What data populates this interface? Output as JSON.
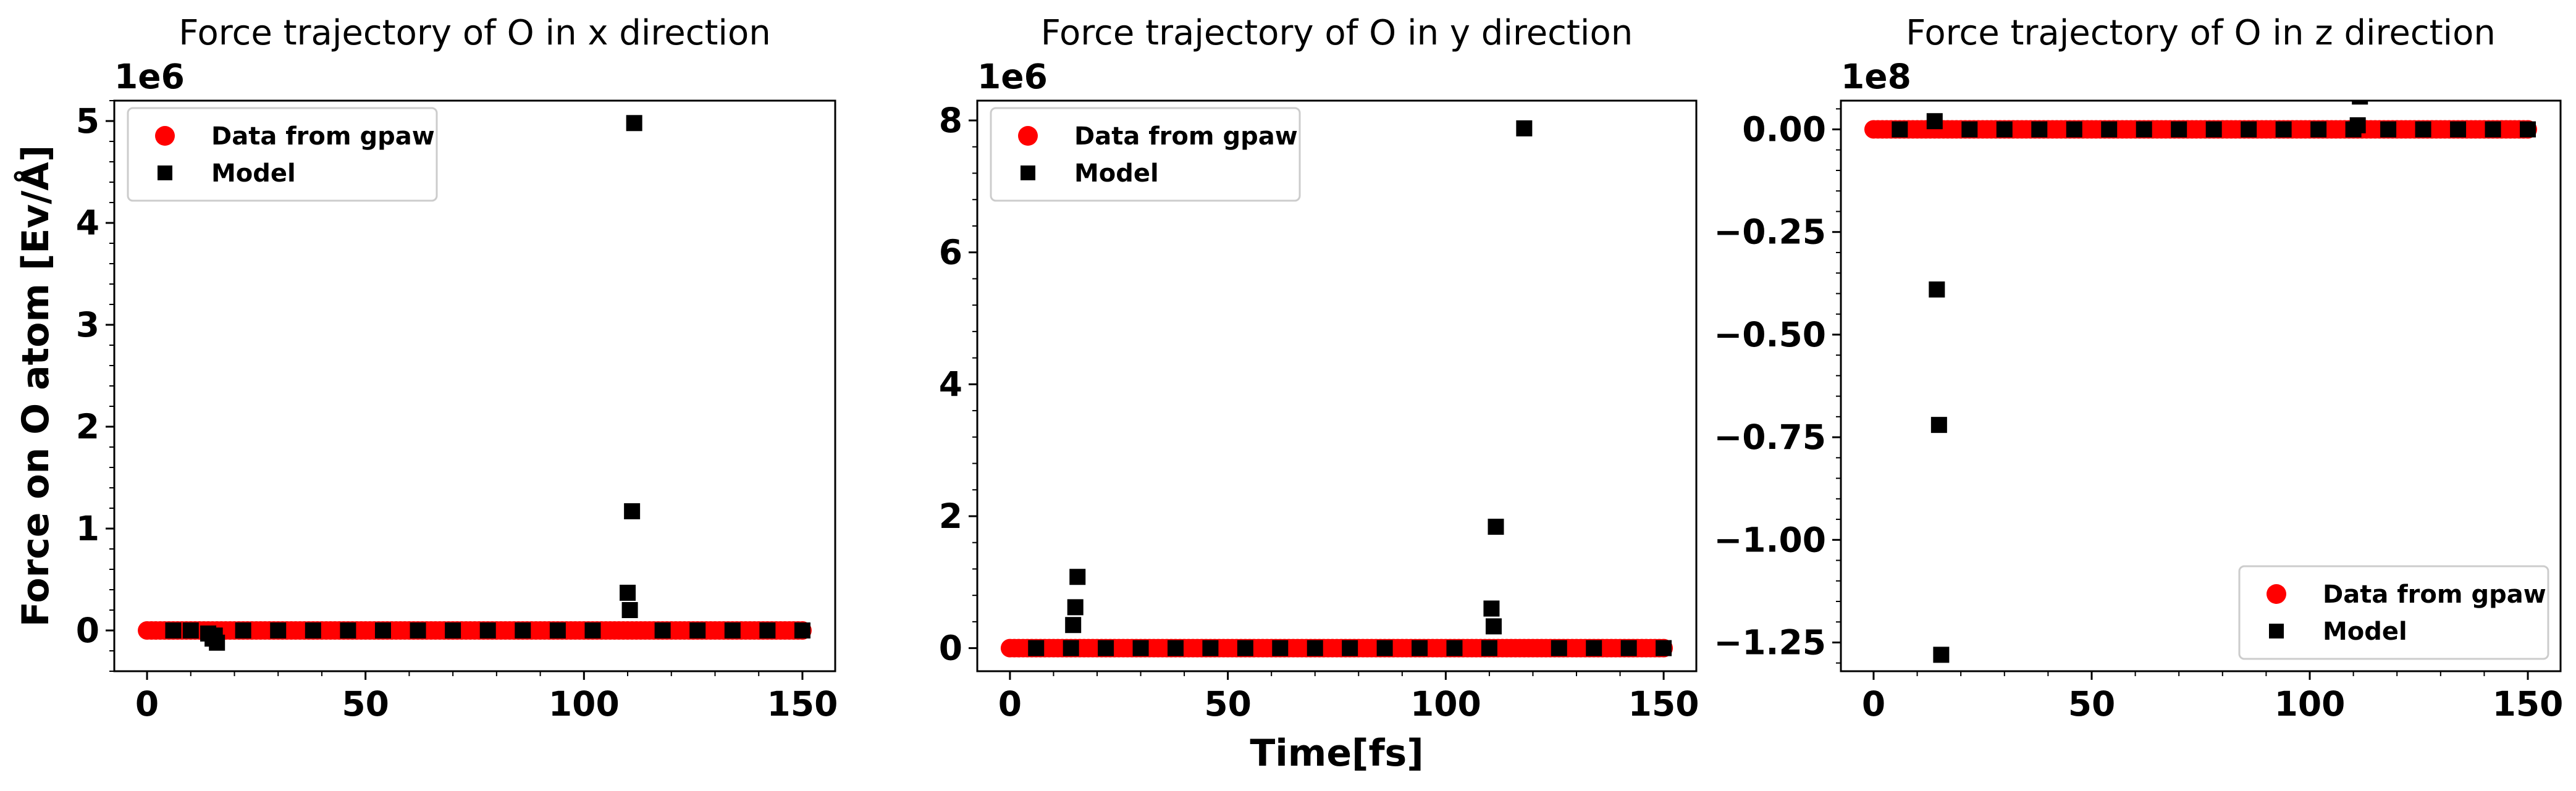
{
  "chart_data": [
    {
      "type": "scatter",
      "title": "Force trajectory of O in x direction",
      "xlabel": "",
      "ylabel": "Force on O atom [Ev/Å]",
      "offset_label": "1e6",
      "scale": 1000000,
      "xlim": [
        -7.5,
        157.5
      ],
      "ylim": [
        -0.4,
        5.2
      ],
      "x_ticks": [
        0,
        50,
        100,
        150
      ],
      "y_ticks": [
        0,
        1,
        2,
        3,
        4,
        5
      ],
      "y_tick_labels": [
        "0",
        "1",
        "2",
        "3",
        "4",
        "5"
      ],
      "legend_position": "upper-left",
      "series": [
        {
          "name": "Data from gpaw",
          "marker": "circle",
          "color": "#ff0000",
          "x": [
            0,
            1,
            2,
            3,
            4,
            5,
            6,
            7,
            8,
            9,
            10,
            11,
            12,
            13,
            14,
            15,
            16,
            17,
            18,
            19,
            20,
            21,
            22,
            23,
            24,
            25,
            26,
            27,
            28,
            29,
            30,
            31,
            32,
            33,
            34,
            35,
            36,
            37,
            38,
            39,
            40,
            41,
            42,
            43,
            44,
            45,
            46,
            47,
            48,
            49,
            50,
            51,
            52,
            53,
            54,
            55,
            56,
            57,
            58,
            59,
            60,
            61,
            62,
            63,
            64,
            65,
            66,
            67,
            68,
            69,
            70,
            71,
            72,
            73,
            74,
            75,
            76,
            77,
            78,
            79,
            80,
            81,
            82,
            83,
            84,
            85,
            86,
            87,
            88,
            89,
            90,
            91,
            92,
            93,
            94,
            95,
            96,
            97,
            98,
            99,
            100,
            101,
            102,
            103,
            104,
            105,
            106,
            107,
            108,
            109,
            110,
            111,
            112,
            113,
            114,
            115,
            116,
            117,
            118,
            119,
            120,
            121,
            122,
            123,
            124,
            125,
            126,
            127,
            128,
            129,
            130,
            131,
            132,
            133,
            134,
            135,
            136,
            137,
            138,
            139,
            140,
            141,
            142,
            143,
            144,
            145,
            146,
            147,
            148,
            149,
            150
          ],
          "y": [
            0,
            0,
            0,
            0,
            0,
            0,
            0,
            0,
            0,
            0,
            0,
            0,
            0,
            0,
            0,
            0,
            0,
            0,
            0,
            0,
            0,
            0,
            0,
            0,
            0,
            0,
            0,
            0,
            0,
            0,
            0,
            0,
            0,
            0,
            0,
            0,
            0,
            0,
            0,
            0,
            0,
            0,
            0,
            0,
            0,
            0,
            0,
            0,
            0,
            0,
            0,
            0,
            0,
            0,
            0,
            0,
            0,
            0,
            0,
            0,
            0,
            0,
            0,
            0,
            0,
            0,
            0,
            0,
            0,
            0,
            0,
            0,
            0,
            0,
            0,
            0,
            0,
            0,
            0,
            0,
            0,
            0,
            0,
            0,
            0,
            0,
            0,
            0,
            0,
            0,
            0,
            0,
            0,
            0,
            0,
            0,
            0,
            0,
            0,
            0,
            0,
            0,
            0,
            0,
            0,
            0,
            0,
            0,
            0,
            0,
            0,
            0,
            0,
            0,
            0,
            0,
            0,
            0,
            0,
            0,
            0,
            0,
            0,
            0,
            0,
            0,
            0,
            0,
            0,
            0,
            0,
            0,
            0,
            0,
            0,
            0,
            0,
            0,
            0,
            0,
            0,
            0,
            0,
            0,
            0,
            0,
            0,
            0,
            0,
            0,
            0
          ]
        },
        {
          "name": "Model",
          "marker": "square",
          "color": "#000000",
          "x": [
            6,
            10,
            14,
            15,
            15.5,
            16,
            22,
            30,
            38,
            46,
            54,
            62,
            70,
            78,
            86,
            94,
            102,
            110,
            110.5,
            111,
            111.5,
            118,
            126,
            134,
            142,
            150
          ],
          "y": [
            0,
            0,
            -0.03,
            -0.08,
            -0.05,
            -0.12,
            0,
            0,
            0,
            0,
            0,
            0,
            0,
            0,
            0,
            0,
            0,
            0.37,
            0.2,
            1.17,
            4.98,
            0,
            0,
            0,
            0,
            0
          ]
        }
      ]
    },
    {
      "type": "scatter",
      "title": "Force trajectory of O in y direction",
      "xlabel": "Time[fs]",
      "ylabel": "",
      "offset_label": "1e6",
      "scale": 1000000,
      "xlim": [
        -7.5,
        157.5
      ],
      "ylim": [
        -0.35,
        8.3
      ],
      "x_ticks": [
        0,
        50,
        100,
        150
      ],
      "y_ticks": [
        0,
        2,
        4,
        6,
        8
      ],
      "y_tick_labels": [
        "0",
        "2",
        "4",
        "6",
        "8"
      ],
      "legend_position": "upper-left",
      "series": [
        {
          "name": "Data from gpaw",
          "marker": "circle",
          "color": "#ff0000",
          "x": [
            0,
            1,
            2,
            3,
            4,
            5,
            6,
            7,
            8,
            9,
            10,
            11,
            12,
            13,
            14,
            15,
            16,
            17,
            18,
            19,
            20,
            21,
            22,
            23,
            24,
            25,
            26,
            27,
            28,
            29,
            30,
            31,
            32,
            33,
            34,
            35,
            36,
            37,
            38,
            39,
            40,
            41,
            42,
            43,
            44,
            45,
            46,
            47,
            48,
            49,
            50,
            51,
            52,
            53,
            54,
            55,
            56,
            57,
            58,
            59,
            60,
            61,
            62,
            63,
            64,
            65,
            66,
            67,
            68,
            69,
            70,
            71,
            72,
            73,
            74,
            75,
            76,
            77,
            78,
            79,
            80,
            81,
            82,
            83,
            84,
            85,
            86,
            87,
            88,
            89,
            90,
            91,
            92,
            93,
            94,
            95,
            96,
            97,
            98,
            99,
            100,
            101,
            102,
            103,
            104,
            105,
            106,
            107,
            108,
            109,
            110,
            111,
            112,
            113,
            114,
            115,
            116,
            117,
            118,
            119,
            120,
            121,
            122,
            123,
            124,
            125,
            126,
            127,
            128,
            129,
            130,
            131,
            132,
            133,
            134,
            135,
            136,
            137,
            138,
            139,
            140,
            141,
            142,
            143,
            144,
            145,
            146,
            147,
            148,
            149,
            150
          ],
          "y": [
            0,
            0,
            0,
            0,
            0,
            0,
            0,
            0,
            0,
            0,
            0,
            0,
            0,
            0,
            0,
            0,
            0,
            0,
            0,
            0,
            0,
            0,
            0,
            0,
            0,
            0,
            0,
            0,
            0,
            0,
            0,
            0,
            0,
            0,
            0,
            0,
            0,
            0,
            0,
            0,
            0,
            0,
            0,
            0,
            0,
            0,
            0,
            0,
            0,
            0,
            0,
            0,
            0,
            0,
            0,
            0,
            0,
            0,
            0,
            0,
            0,
            0,
            0,
            0,
            0,
            0,
            0,
            0,
            0,
            0,
            0,
            0,
            0,
            0,
            0,
            0,
            0,
            0,
            0,
            0,
            0,
            0,
            0,
            0,
            0,
            0,
            0,
            0,
            0,
            0,
            0,
            0,
            0,
            0,
            0,
            0,
            0,
            0,
            0,
            0,
            0,
            0,
            0,
            0,
            0,
            0,
            0,
            0,
            0,
            0,
            0,
            0,
            0,
            0,
            0,
            0,
            0,
            0,
            0,
            0,
            0,
            0,
            0,
            0,
            0,
            0,
            0,
            0,
            0,
            0,
            0,
            0,
            0,
            0,
            0,
            0,
            0,
            0,
            0,
            0,
            0,
            0,
            0,
            0,
            0,
            0,
            0,
            0,
            0,
            0,
            0
          ]
        },
        {
          "name": "Model",
          "marker": "square",
          "color": "#000000",
          "x": [
            6,
            14,
            14.5,
            15,
            15.5,
            22,
            30,
            38,
            46,
            54,
            62,
            70,
            78,
            86,
            94,
            102,
            110,
            110.5,
            111,
            111.5,
            118,
            126,
            134,
            142,
            150
          ],
          "y": [
            0,
            0,
            0.35,
            0.62,
            1.08,
            0,
            0,
            0,
            0,
            0,
            0,
            0,
            0,
            0,
            0,
            0,
            0,
            0.6,
            0.33,
            1.84,
            7.88,
            0,
            0,
            0,
            0
          ]
        }
      ]
    },
    {
      "type": "scatter",
      "title": "Force trajectory of O in z direction",
      "xlabel": "",
      "ylabel": "",
      "offset_label": "1e8",
      "scale": 100000000,
      "xlim": [
        -7.5,
        157.5
      ],
      "ylim": [
        -1.32,
        0.07
      ],
      "x_ticks": [
        0,
        50,
        100,
        150
      ],
      "y_ticks": [
        0,
        -0.25,
        -0.5,
        -0.75,
        -1.0,
        -1.25
      ],
      "y_tick_labels": [
        "0.00",
        "−0.25",
        "−0.50",
        "−0.75",
        "−1.00",
        "−1.25"
      ],
      "legend_position": "lower-right",
      "series": [
        {
          "name": "Data from gpaw",
          "marker": "circle",
          "color": "#ff0000",
          "x": [
            0,
            1,
            2,
            3,
            4,
            5,
            6,
            7,
            8,
            9,
            10,
            11,
            12,
            13,
            14,
            15,
            16,
            17,
            18,
            19,
            20,
            21,
            22,
            23,
            24,
            25,
            26,
            27,
            28,
            29,
            30,
            31,
            32,
            33,
            34,
            35,
            36,
            37,
            38,
            39,
            40,
            41,
            42,
            43,
            44,
            45,
            46,
            47,
            48,
            49,
            50,
            51,
            52,
            53,
            54,
            55,
            56,
            57,
            58,
            59,
            60,
            61,
            62,
            63,
            64,
            65,
            66,
            67,
            68,
            69,
            70,
            71,
            72,
            73,
            74,
            75,
            76,
            77,
            78,
            79,
            80,
            81,
            82,
            83,
            84,
            85,
            86,
            87,
            88,
            89,
            90,
            91,
            92,
            93,
            94,
            95,
            96,
            97,
            98,
            99,
            100,
            101,
            102,
            103,
            104,
            105,
            106,
            107,
            108,
            109,
            110,
            111,
            112,
            113,
            114,
            115,
            116,
            117,
            118,
            119,
            120,
            121,
            122,
            123,
            124,
            125,
            126,
            127,
            128,
            129,
            130,
            131,
            132,
            133,
            134,
            135,
            136,
            137,
            138,
            139,
            140,
            141,
            142,
            143,
            144,
            145,
            146,
            147,
            148,
            149,
            150
          ],
          "y": [
            0,
            0,
            0,
            0,
            0,
            0,
            0,
            0,
            0,
            0,
            0,
            0,
            0,
            0,
            0,
            0,
            0,
            0,
            0,
            0,
            0,
            0,
            0,
            0,
            0,
            0,
            0,
            0,
            0,
            0,
            0,
            0,
            0,
            0,
            0,
            0,
            0,
            0,
            0,
            0,
            0,
            0,
            0,
            0,
            0,
            0,
            0,
            0,
            0,
            0,
            0,
            0,
            0,
            0,
            0,
            0,
            0,
            0,
            0,
            0,
            0,
            0,
            0,
            0,
            0,
            0,
            0,
            0,
            0,
            0,
            0,
            0,
            0,
            0,
            0,
            0,
            0,
            0,
            0,
            0,
            0,
            0,
            0,
            0,
            0,
            0,
            0,
            0,
            0,
            0,
            0,
            0,
            0,
            0,
            0,
            0,
            0,
            0,
            0,
            0,
            0,
            0,
            0,
            0,
            0,
            0,
            0,
            0,
            0,
            0,
            0,
            0,
            0,
            0,
            0,
            0,
            0,
            0,
            0,
            0,
            0,
            0,
            0,
            0,
            0,
            0,
            0,
            0,
            0,
            0,
            0,
            0,
            0,
            0,
            0,
            0,
            0,
            0,
            0,
            0,
            0,
            0,
            0,
            0,
            0,
            0,
            0,
            0,
            0,
            0,
            0
          ]
        },
        {
          "name": "Model",
          "marker": "square",
          "color": "#000000",
          "x": [
            6,
            14,
            14.5,
            15,
            15.5,
            22,
            30,
            38,
            46,
            54,
            62,
            70,
            78,
            86,
            94,
            102,
            110,
            111,
            111.5,
            118,
            126,
            134,
            142,
            150
          ],
          "y": [
            0,
            0.02,
            -0.39,
            -0.72,
            -1.28,
            0,
            0,
            0,
            0,
            0,
            0,
            0,
            0,
            0,
            0,
            0,
            0,
            0.01,
            0.08,
            0,
            0,
            0,
            0,
            0
          ]
        }
      ]
    }
  ]
}
